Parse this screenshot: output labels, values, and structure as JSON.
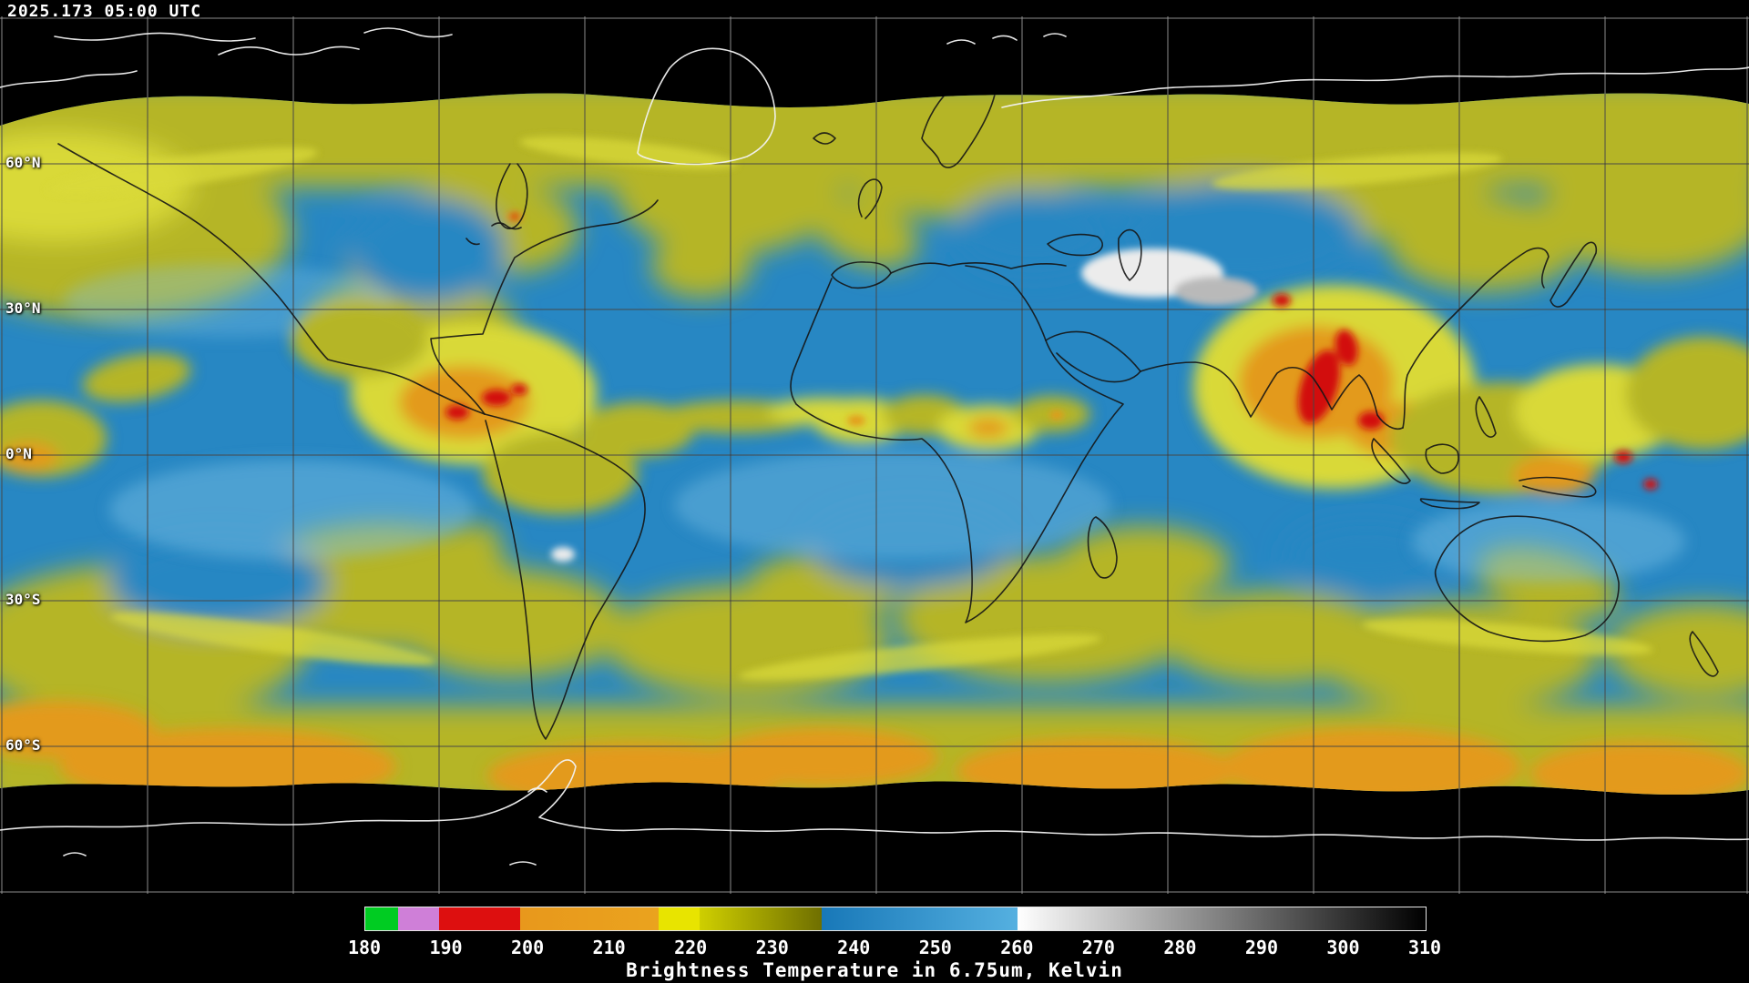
{
  "header": {
    "timestamp": "2025.173 05:00 UTC"
  },
  "map": {
    "latitude_labels": [
      "60°N",
      "30°N",
      "0°N",
      "30°S",
      "60°S"
    ]
  },
  "colorbar": {
    "caption": "Brightness Temperature in 6.75um, Kelvin",
    "min": 180,
    "max": 310,
    "ticks": [
      180,
      190,
      200,
      210,
      220,
      230,
      240,
      250,
      260,
      270,
      280,
      290,
      300,
      310
    ],
    "segments": [
      {
        "from": 180,
        "to": 184,
        "color": "#00cc22",
        "color_end": "#00cc22"
      },
      {
        "from": 184,
        "to": 189,
        "color": "#cf7fd8",
        "color_end": "#cf7fd8"
      },
      {
        "from": 189,
        "to": 199,
        "color": "#dd0f0f",
        "color_end": "#dd0f0f"
      },
      {
        "from": 199,
        "to": 216,
        "color": "#e8981c",
        "color_end": "#eaa31e"
      },
      {
        "from": 216,
        "to": 221,
        "color": "#e8e400",
        "color_end": "#e8e400"
      },
      {
        "from": 221,
        "to": 236,
        "color": "#cfcf00",
        "color_end": "#6f6f00"
      },
      {
        "from": 236,
        "to": 260,
        "color": "#1878b8",
        "color_end": "#55b0e0"
      },
      {
        "from": 260,
        "to": 310,
        "color": "#ffffff",
        "color_end": "#000000"
      }
    ]
  },
  "palette": {
    "ocean_blue": "#2787c3",
    "pale_blue": "#7cc0e4",
    "moist_olive": "#b5b526",
    "bright_yellow": "#d9d938",
    "convective_orange": "#e39a1d",
    "convective_red": "#d21111",
    "dry_white": "#ececec",
    "dry_gray": "#b9b9b9",
    "background_black": "#000000",
    "gridline_light": "#9a9a9a",
    "gridline_dark": "#2e2e2e",
    "coastline_dark": "#151515",
    "coastline_white": "#f2f2f2",
    "label_white": "#ffffff"
  }
}
